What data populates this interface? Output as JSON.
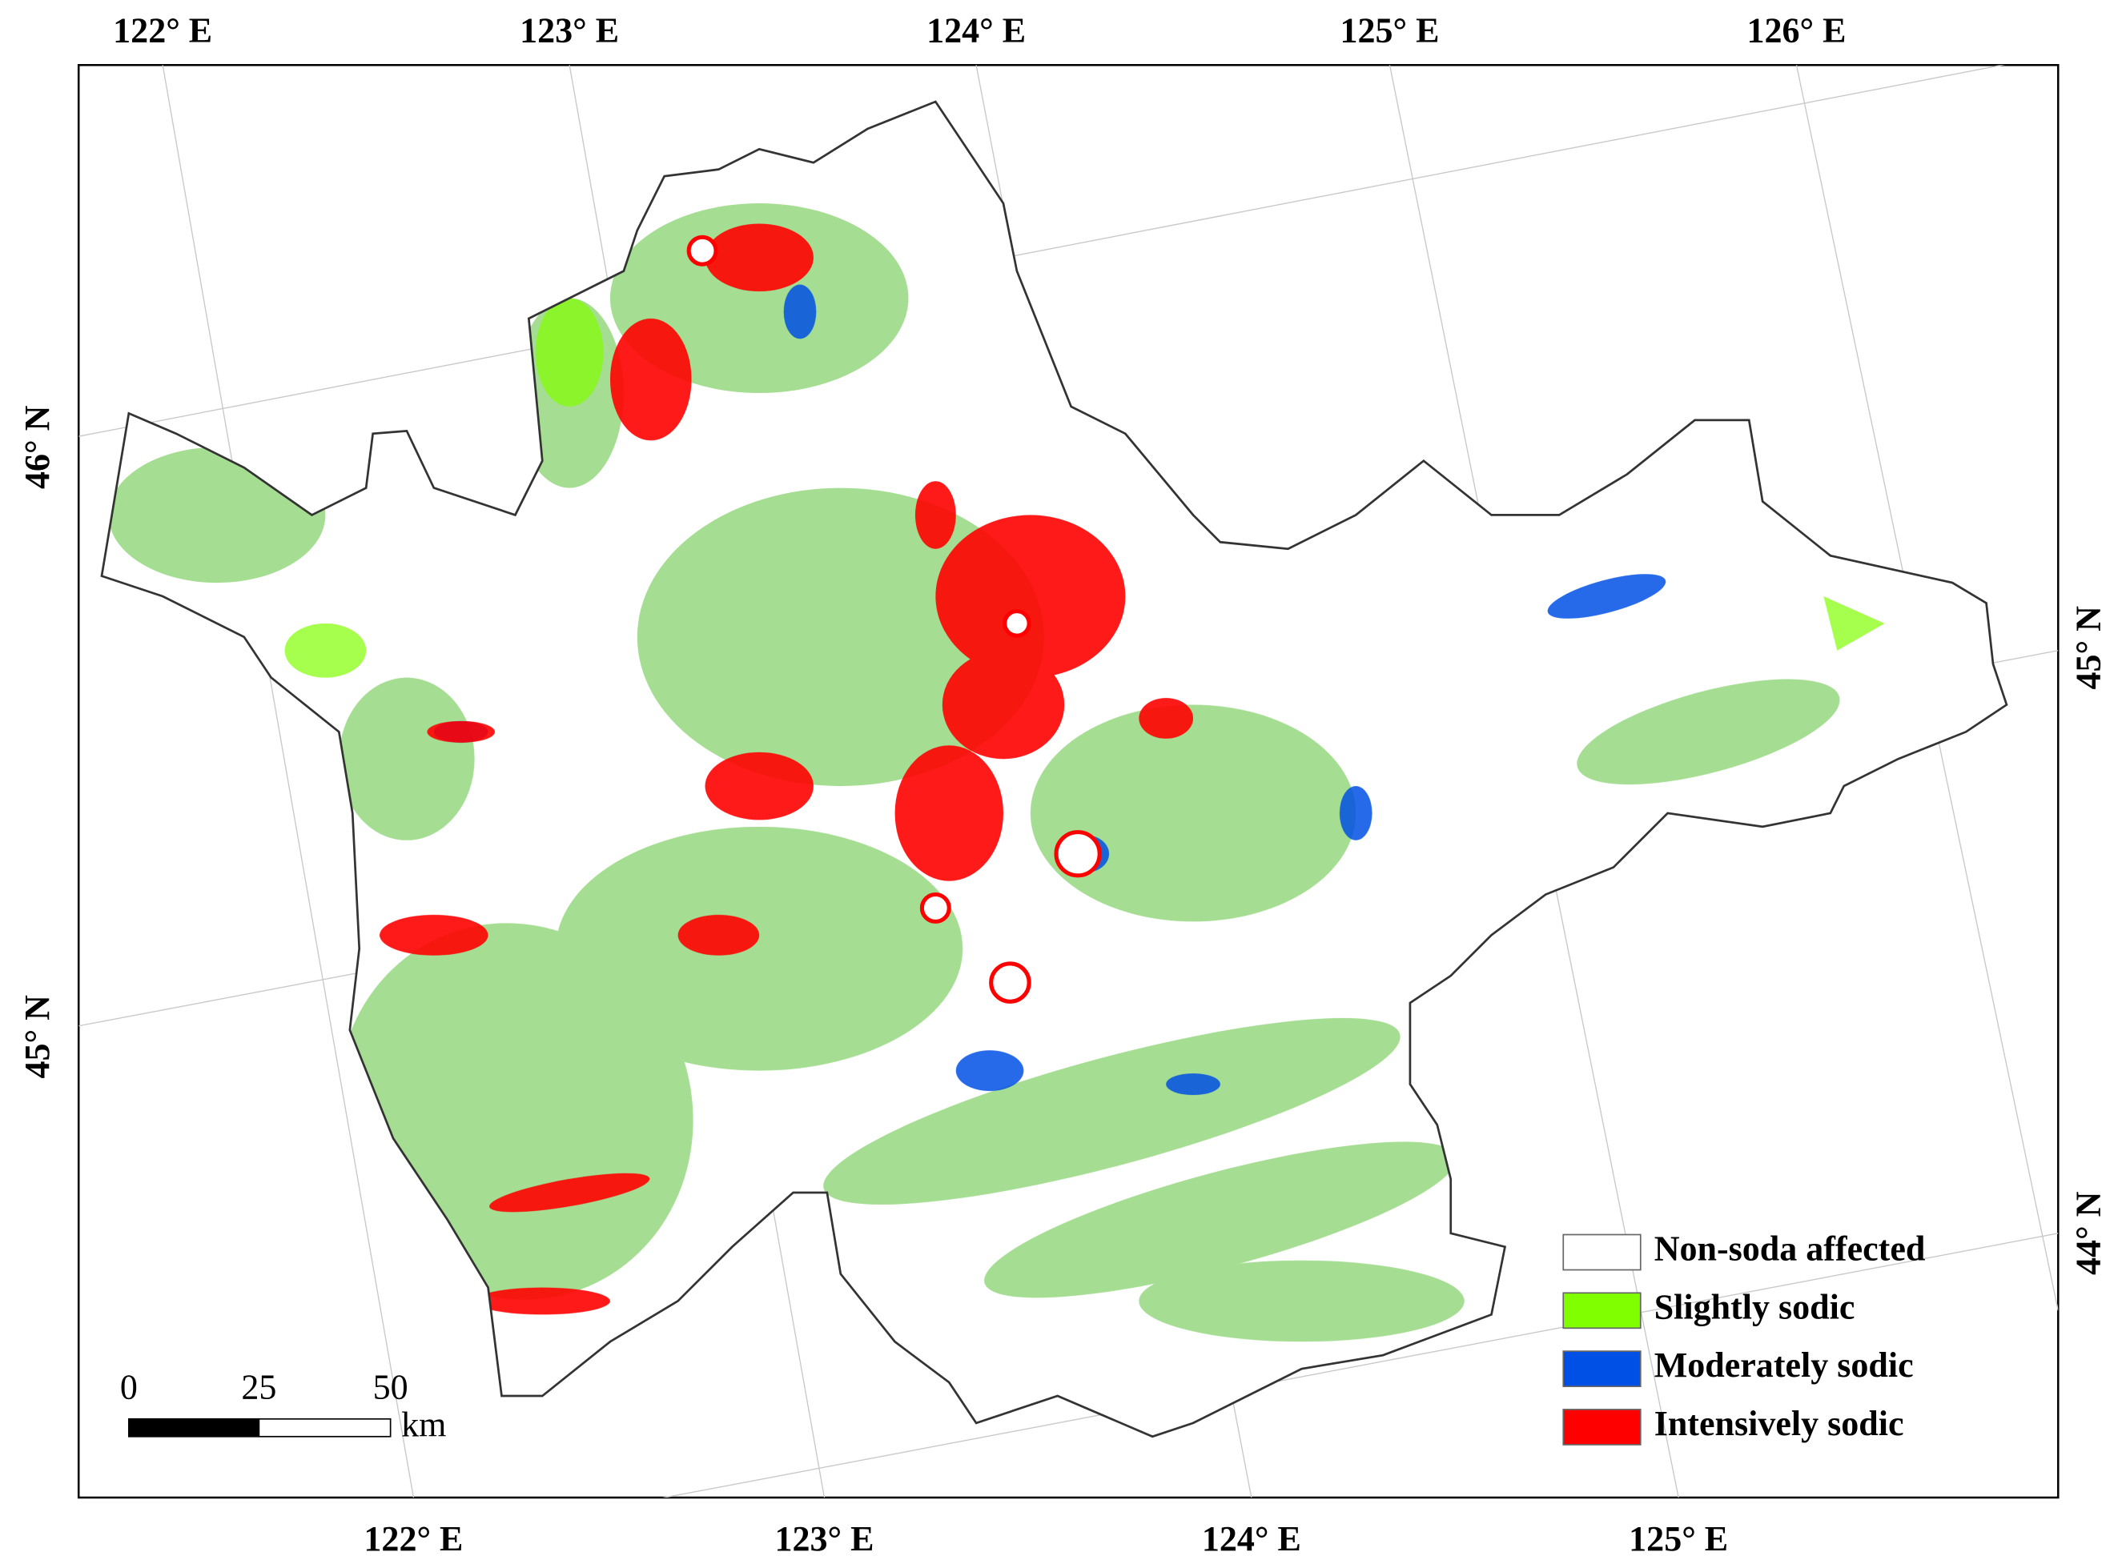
{
  "map": {
    "top_labels": [
      "122° E",
      "123° E",
      "124° E",
      "125° E",
      "126° E"
    ],
    "bottom_labels": [
      "122° E",
      "123° E",
      "124° E",
      "125° E"
    ],
    "left_labels": [
      "46° N",
      "45° N"
    ],
    "right_labels": [
      "45° N",
      "44° N"
    ],
    "legend": [
      {
        "label": "Non-soda affected",
        "color": "#ffffff"
      },
      {
        "label": "Slightly sodic",
        "color": "#80ff00"
      },
      {
        "label": "Moderately sodic",
        "color": "#0050e6"
      },
      {
        "label": "Intensively sodic",
        "color": "#ff0000"
      }
    ],
    "scale_bar": {
      "labels": [
        "0",
        "25",
        "50"
      ],
      "unit": "km"
    }
  }
}
